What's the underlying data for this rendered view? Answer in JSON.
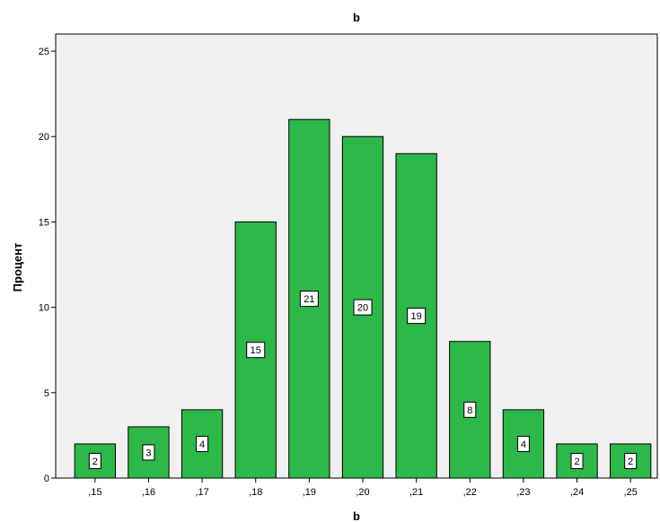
{
  "chart_data": {
    "type": "bar",
    "title": "b",
    "xlabel": "b",
    "ylabel": "Процент",
    "categories": [
      ",15",
      ",16",
      ",17",
      ",18",
      ",19",
      ",20",
      ",21",
      ",22",
      ",23",
      ",24",
      ",25"
    ],
    "values": [
      2,
      3,
      4,
      15,
      21,
      20,
      19,
      8,
      4,
      2,
      2
    ],
    "data_labels": [
      "2",
      "3",
      "4",
      "15",
      "21",
      "20",
      "19",
      "8",
      "4",
      "2",
      "2"
    ],
    "ylim": [
      0,
      26
    ],
    "yticks": [
      0,
      5,
      10,
      15,
      20,
      25
    ],
    "ytick_labels": [
      "0",
      "5",
      "10",
      "15",
      "20",
      "25"
    ],
    "grid": false,
    "legend": "none",
    "colors": {
      "bar_fill": "#2DB84A",
      "bar_stroke": "#000000",
      "plot_background": "#F0F0F0",
      "label_box": "#FFFFFF"
    }
  }
}
